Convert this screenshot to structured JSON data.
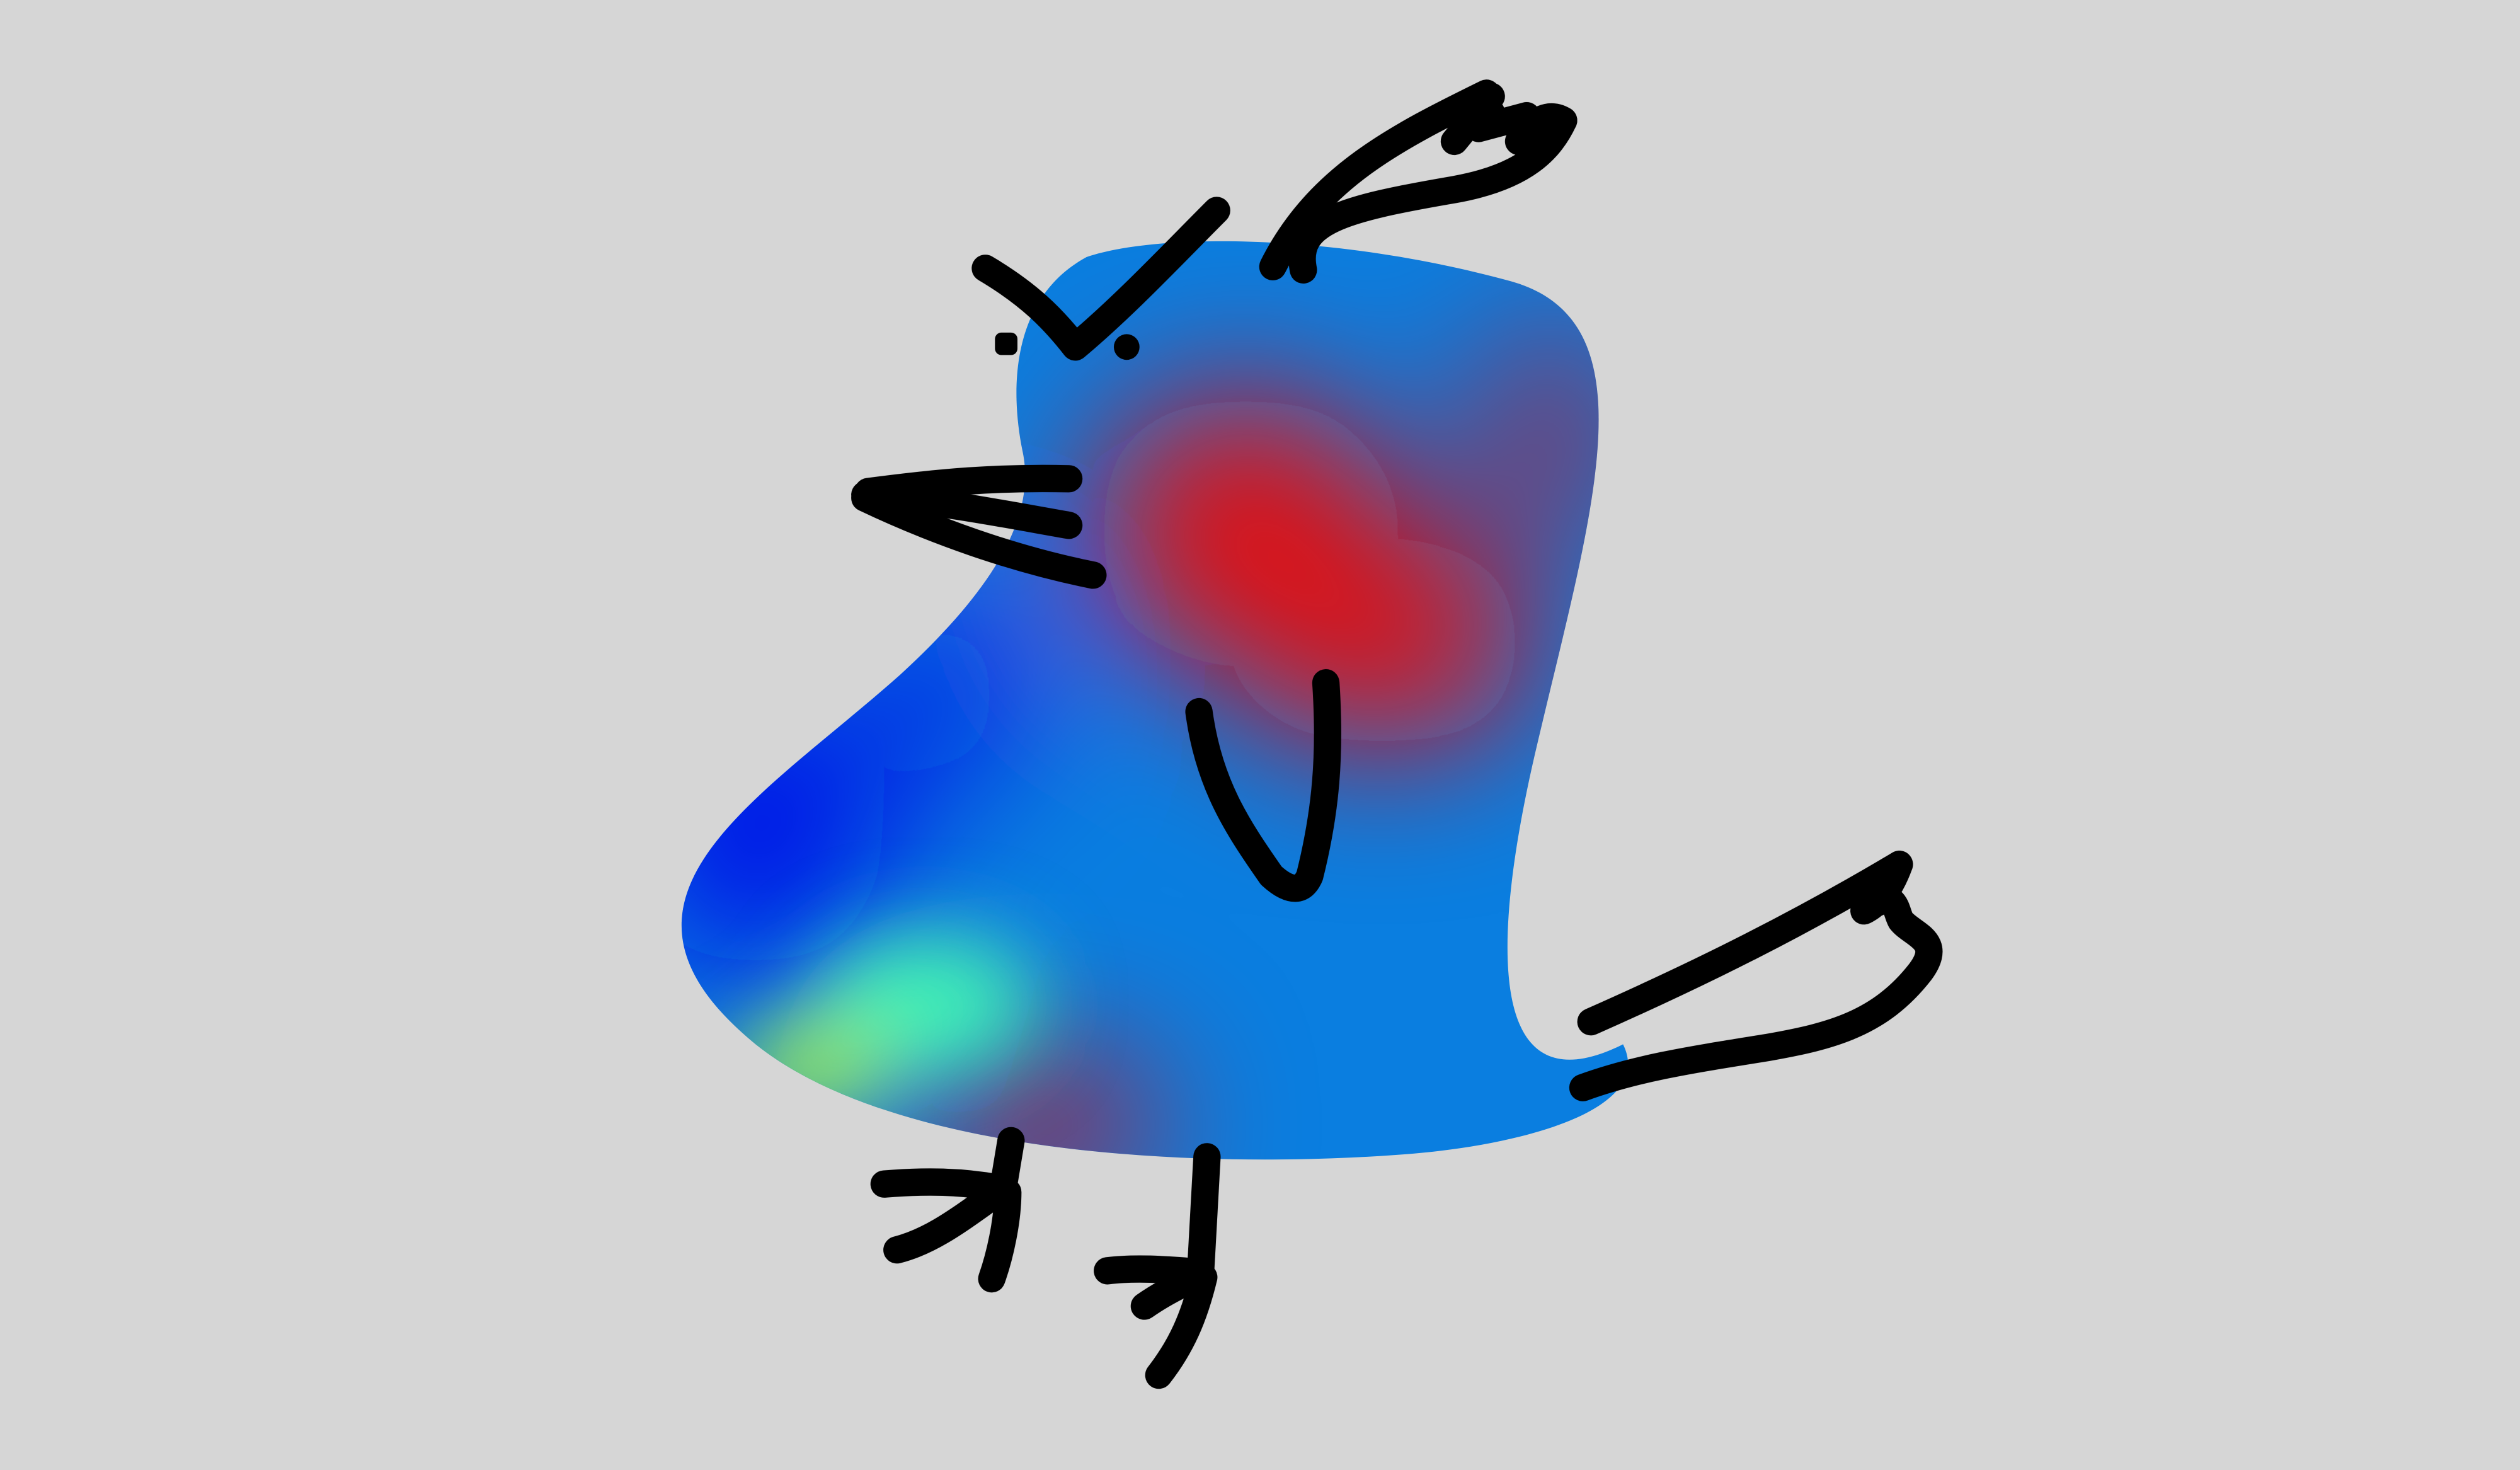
{
  "scene": {
    "subject": "bird",
    "background_color": "#d6d6d6",
    "ink_color": "#000000",
    "body_colors": {
      "blue": "#0a7ee0",
      "deep_blue": "#0010e8",
      "red": "#e60808",
      "mint": "#3ff2b5",
      "lime": "#97e65a"
    }
  }
}
